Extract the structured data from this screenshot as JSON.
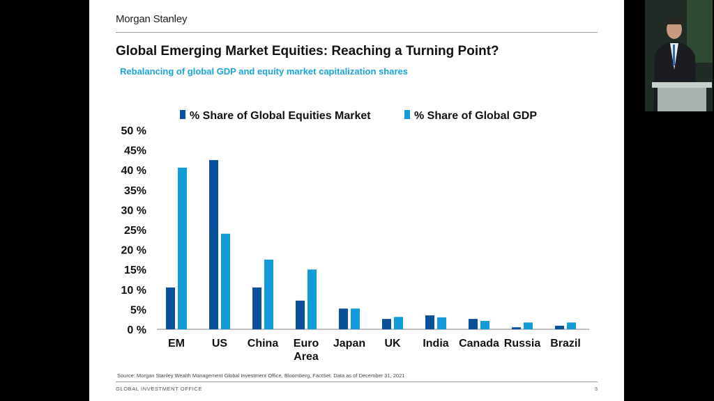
{
  "slide": {
    "brand": "Morgan Stanley",
    "title": "Global Emerging Market Equities: Reaching a Turning Point?",
    "subtitle": "Rebalancing of global GDP and equity market capitalization shares",
    "source": "Source: Morgan Stanley Wealth Management Global Investment Office, Bloomberg, FactSet. Data as of December 31, 2021",
    "footer": "GLOBAL INVESTMENT OFFICE",
    "page_number": "3"
  },
  "chart_data": {
    "type": "bar",
    "title": "",
    "xlabel": "",
    "ylabel": "",
    "ylim": [
      0,
      50
    ],
    "yticks": [
      0,
      5,
      10,
      15,
      20,
      25,
      30,
      35,
      40,
      45,
      50
    ],
    "ytick_labels": [
      "0 %",
      "5%",
      "10 %",
      "15%",
      "20 %",
      "25%",
      "30 %",
      "35%",
      "40 %",
      "45%",
      "50 %"
    ],
    "categories": [
      "EM",
      "US",
      "China",
      "Euro\nArea",
      "Japan",
      "UK",
      "India",
      "Canada",
      "Russia",
      "Brazil"
    ],
    "legend_position": "top",
    "grid": false,
    "series": [
      {
        "name": "% Share of Global Equities Market",
        "color": "#0a4f99",
        "values": [
          10.5,
          42.5,
          10.5,
          7.2,
          5.2,
          2.6,
          3.5,
          2.6,
          0.5,
          0.9
        ]
      },
      {
        "name": "% Share of Global GDP",
        "color": "#129bd8",
        "values": [
          40.6,
          24.0,
          17.5,
          15.0,
          5.2,
          3.1,
          3.0,
          2.1,
          1.7,
          1.7
        ]
      }
    ]
  }
}
